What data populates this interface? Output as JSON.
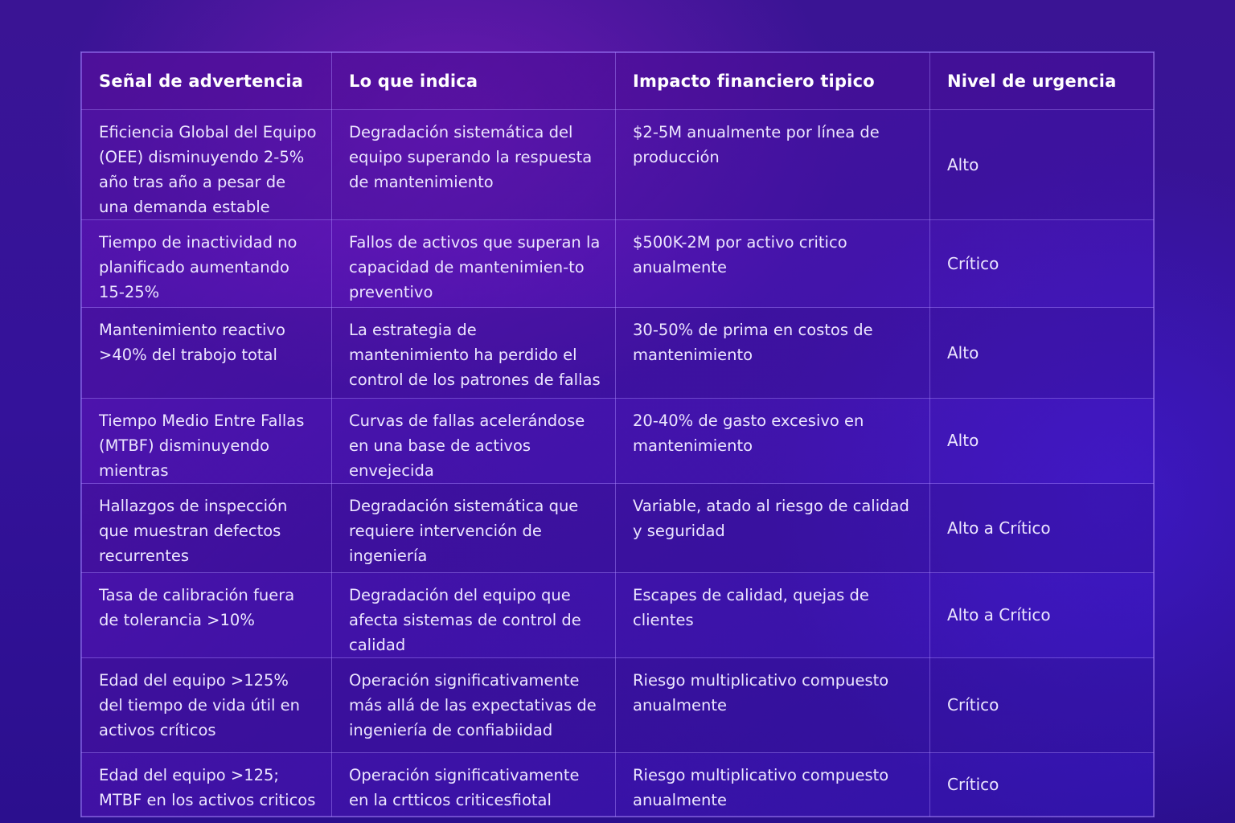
{
  "headers": [
    "Señal de advertencia",
    "Lo que indica",
    "Impacto financiero tipico",
    "Nivel de urgencia"
  ],
  "rows": [
    {
      "signal": "Eficiencia Global del Equipo (OEE) disminuyendo 2-5% año tras año a pesar de una demanda estable",
      "indicates": "Degradación sistemática del equipo superando la respuesta de mantenimiento",
      "impact": "$2-5M anualmente por línea de producción",
      "urgency": "Alto"
    },
    {
      "signal": "Tiempo de inactividad no planificado aumentando 15-25%",
      "indicates": "Fallos de activos que superan la capacidad de mantenimien-to preventivo",
      "impact": "$500K-2M por activo critico anualmente",
      "urgency": "Crítico"
    },
    {
      "signal": "Mantenimiento reactivo >40% del trabojo total",
      "indicates": "La estrategia de mantenimiento ha perdido el control de los patrones de fallas",
      "impact": "30-50% de prima en costos de mantenimiento",
      "urgency": "Alto"
    },
    {
      "signal": "Tiempo Medio Entre Fallas (MTBF) disminuyendo mientras",
      "indicates": "Curvas de fallas acelerándose en una base de activos envejecida",
      "impact": "20-40% de gasto excesivo en mantenimiento",
      "urgency": "Alto"
    },
    {
      "signal": "Hallazgos de inspección que muestran defectos recurrentes",
      "indicates": "Degradación sistemática que requiere intervención de ingeniería",
      "impact": "Variable, atado al riesgo de calidad y seguridad",
      "urgency": "Alto a Crítico"
    },
    {
      "signal": "Tasa de calibración fuera de tolerancia >10%",
      "indicates": "Degradación del equipo que afecta sistemas de control de calidad",
      "impact": "Escapes de calidad, quejas de clientes",
      "urgency": "Alto a Crítico"
    },
    {
      "signal": "Edad del equipo >125% del tiempo de vida útil en activos críticos",
      "indicates": "Operación significativamente más allá de las expectativas de ingeniería de confiabiidad",
      "impact": "Riesgo multiplicativo compuesto anualmente",
      "urgency": "Crítico"
    },
    {
      "signal": "Edad del equipo >125; MTBF en los activos criticos",
      "indicates": "Operación significativamente en la crtticos criticesfiotal",
      "impact": "Riesgo multiplicativo compuesto anualmente",
      "urgency": "Crítico"
    }
  ]
}
